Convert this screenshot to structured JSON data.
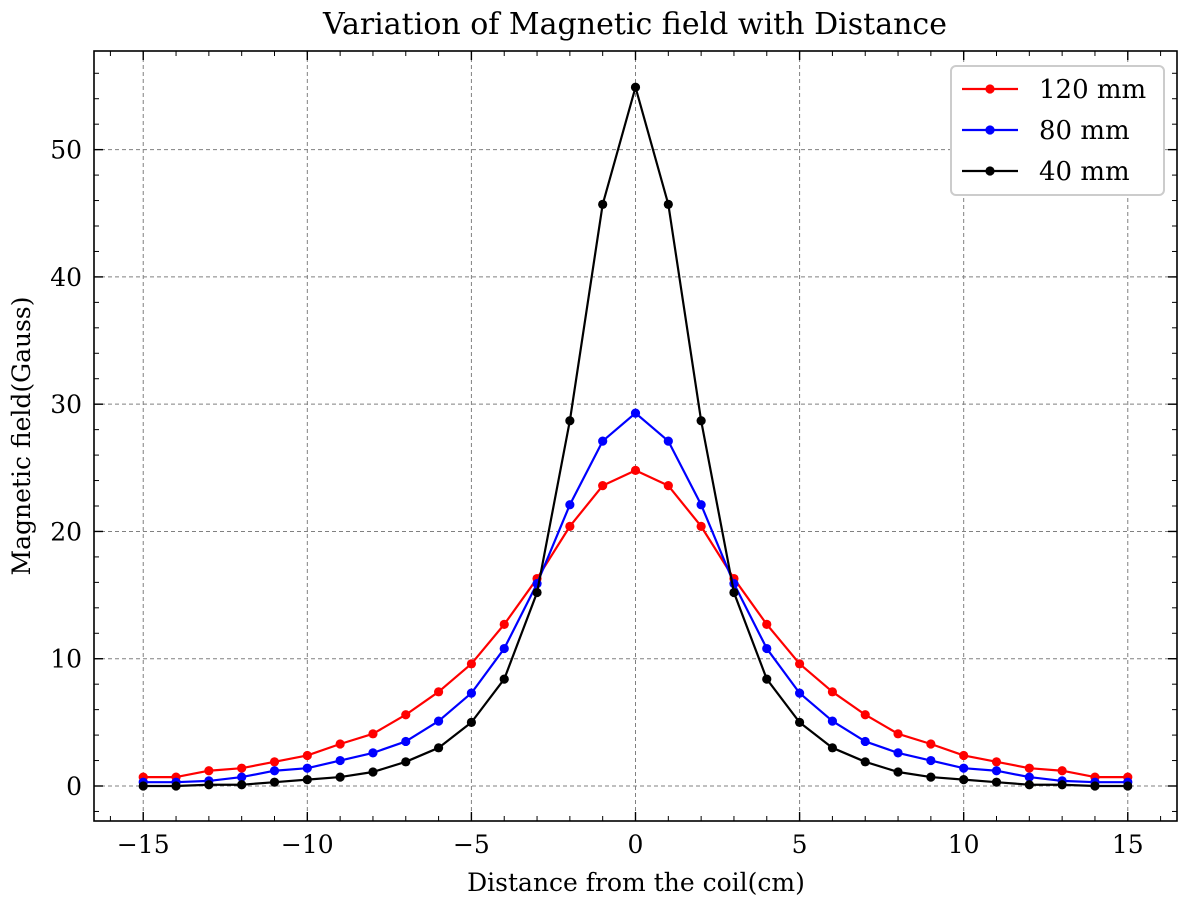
{
  "chart_data": {
    "type": "line",
    "title": "Variation of Magnetic field with Distance",
    "xlabel": "Distance from the coil(cm)",
    "ylabel": "Magnetic field(Gauss)",
    "xlim": [
      -16.5,
      16.5
    ],
    "ylim": [
      -2.75,
      57.75
    ],
    "x_ticks": [
      -15,
      -10,
      -5,
      0,
      5,
      10,
      15
    ],
    "x_tick_labels": [
      "−15",
      "−10",
      "−5",
      "0",
      "5",
      "10",
      "15"
    ],
    "y_ticks": [
      0,
      10,
      20,
      30,
      40,
      50
    ],
    "y_tick_labels": [
      "0",
      "10",
      "20",
      "30",
      "40",
      "50"
    ],
    "grid": true,
    "legend_position": "top-right",
    "x": [
      -15,
      -14,
      -13,
      -12,
      -11,
      -10,
      -9,
      -8,
      -7,
      -6,
      -5,
      -4,
      -3,
      -2,
      -1,
      0,
      1,
      2,
      3,
      4,
      5,
      6,
      7,
      8,
      9,
      10,
      11,
      12,
      13,
      14,
      15
    ],
    "series": [
      {
        "name": "120 mm",
        "color": "#ff0000",
        "values": [
          0.7,
          0.7,
          1.2,
          1.4,
          1.9,
          2.4,
          3.3,
          4.1,
          5.6,
          7.4,
          9.6,
          12.7,
          16.3,
          20.4,
          23.6,
          24.8,
          23.6,
          20.4,
          16.3,
          12.7,
          9.6,
          7.4,
          5.6,
          4.1,
          3.3,
          2.4,
          1.9,
          1.4,
          1.2,
          0.7,
          0.7
        ]
      },
      {
        "name": "80 mm",
        "color": "#0000ff",
        "values": [
          0.3,
          0.3,
          0.4,
          0.7,
          1.2,
          1.4,
          2.0,
          2.6,
          3.5,
          5.1,
          7.3,
          10.8,
          15.9,
          22.1,
          27.1,
          29.3,
          27.1,
          22.1,
          15.9,
          10.8,
          7.3,
          5.1,
          3.5,
          2.6,
          2.0,
          1.4,
          1.2,
          0.7,
          0.4,
          0.3,
          0.3
        ]
      },
      {
        "name": "40 mm",
        "color": "#000000",
        "values": [
          0.0,
          0.0,
          0.1,
          0.1,
          0.3,
          0.5,
          0.7,
          1.1,
          1.9,
          3.0,
          5.0,
          8.4,
          15.2,
          28.7,
          45.7,
          54.9,
          45.7,
          28.7,
          15.2,
          8.4,
          5.0,
          3.0,
          1.9,
          1.1,
          0.7,
          0.5,
          0.3,
          0.1,
          0.1,
          0.0,
          0.0
        ]
      }
    ]
  }
}
